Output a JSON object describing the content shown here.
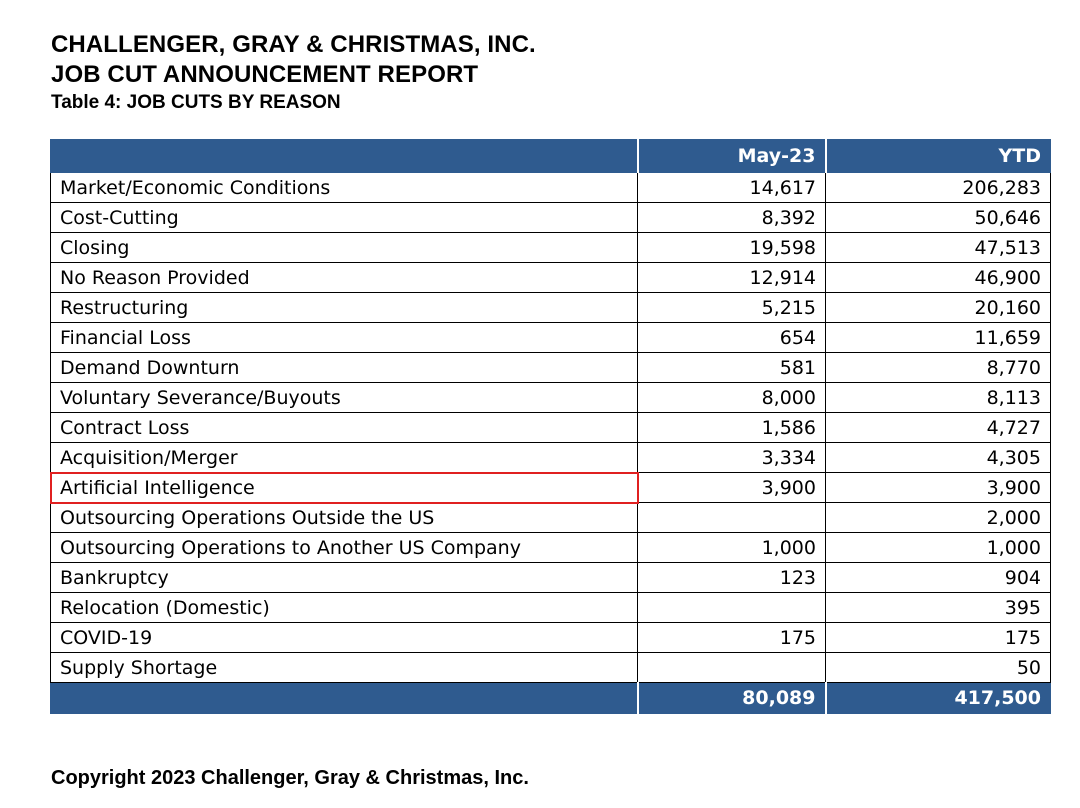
{
  "header": {
    "company": "CHALLENGER, GRAY & CHRISTMAS, INC.",
    "report": "JOB CUT ANNOUNCEMENT REPORT",
    "table_title": "Table 4: JOB CUTS BY REASON"
  },
  "table": {
    "columns": [
      "",
      "May-23",
      "YTD"
    ],
    "rows": [
      {
        "reason": "Market/Economic Conditions",
        "month": "14,617",
        "ytd": "206,283"
      },
      {
        "reason": "Cost-Cutting",
        "month": "8,392",
        "ytd": "50,646"
      },
      {
        "reason": "Closing",
        "month": "19,598",
        "ytd": "47,513"
      },
      {
        "reason": "No Reason Provided",
        "month": "12,914",
        "ytd": "46,900"
      },
      {
        "reason": "Restructuring",
        "month": "5,215",
        "ytd": "20,160"
      },
      {
        "reason": "Financial Loss",
        "month": "654",
        "ytd": "11,659"
      },
      {
        "reason": "Demand Downturn",
        "month": "581",
        "ytd": "8,770"
      },
      {
        "reason": "Voluntary Severance/Buyouts",
        "month": "8,000",
        "ytd": "8,113"
      },
      {
        "reason": "Contract Loss",
        "month": "1,586",
        "ytd": "4,727"
      },
      {
        "reason": "Acquisition/Merger",
        "month": "3,334",
        "ytd": "4,305"
      },
      {
        "reason": "Artificial Intelligence",
        "month": "3,900",
        "ytd": "3,900"
      },
      {
        "reason": "Outsourcing Operations Outside the US",
        "month": "",
        "ytd": "2,000"
      },
      {
        "reason": "Outsourcing Operations to Another US Company",
        "month": "1,000",
        "ytd": "1,000"
      },
      {
        "reason": "Bankruptcy",
        "month": "123",
        "ytd": "904"
      },
      {
        "reason": "Relocation (Domestic)",
        "month": "",
        "ytd": "395"
      },
      {
        "reason": "COVID-19",
        "month": "175",
        "ytd": "175"
      },
      {
        "reason": "Supply Shortage",
        "month": "",
        "ytd": "50"
      }
    ],
    "totals": {
      "label": "",
      "month": "80,089",
      "ytd": "417,500"
    },
    "highlighted_row": "Artificial Intelligence"
  },
  "colors": {
    "header_bg": "#2f5b8f",
    "header_text": "#ffffff",
    "highlight": "#e02020"
  },
  "footer": {
    "copyright": "Copyright 2023 Challenger, Gray & Christmas, Inc."
  }
}
